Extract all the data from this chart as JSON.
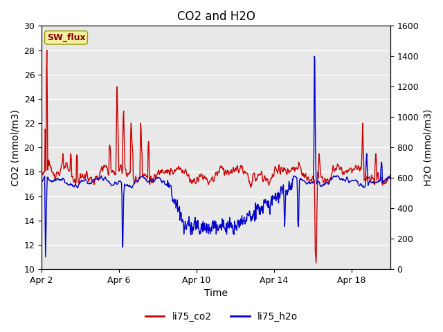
{
  "title": "CO2 and H2O",
  "xlabel": "Time",
  "ylabel_left": "CO2 (mmol/m3)",
  "ylabel_right": "H2O (mmol/m3)",
  "ylim_left": [
    10,
    30
  ],
  "ylim_right": [
    0,
    1600
  ],
  "yticks_left": [
    10,
    12,
    14,
    16,
    18,
    20,
    22,
    24,
    26,
    28,
    30
  ],
  "yticks_right": [
    0,
    200,
    400,
    600,
    800,
    1000,
    1200,
    1400,
    1600
  ],
  "background_color": "#e8e8e8",
  "fig_background": "#ffffff",
  "co2_color": "#cc0000",
  "h2o_color": "#0000cc",
  "sw_flux_box_facecolor": "#f5f0a0",
  "sw_flux_box_edgecolor": "#999900",
  "sw_flux_text_color": "#880000",
  "grid_color": "#ffffff",
  "legend_co2_label": "li75_co2",
  "legend_h2o_label": "li75_h2o",
  "title_fontsize": 12,
  "axis_label_fontsize": 10,
  "tick_fontsize": 9,
  "legend_fontsize": 10,
  "line_width": 1.0,
  "xlim": [
    0,
    18
  ],
  "x_tick_positions": [
    0,
    4,
    8,
    12,
    16
  ],
  "x_tick_labels": [
    "Apr 2",
    "Apr 6",
    "Apr 10",
    "Apr 14",
    "Apr 18"
  ]
}
